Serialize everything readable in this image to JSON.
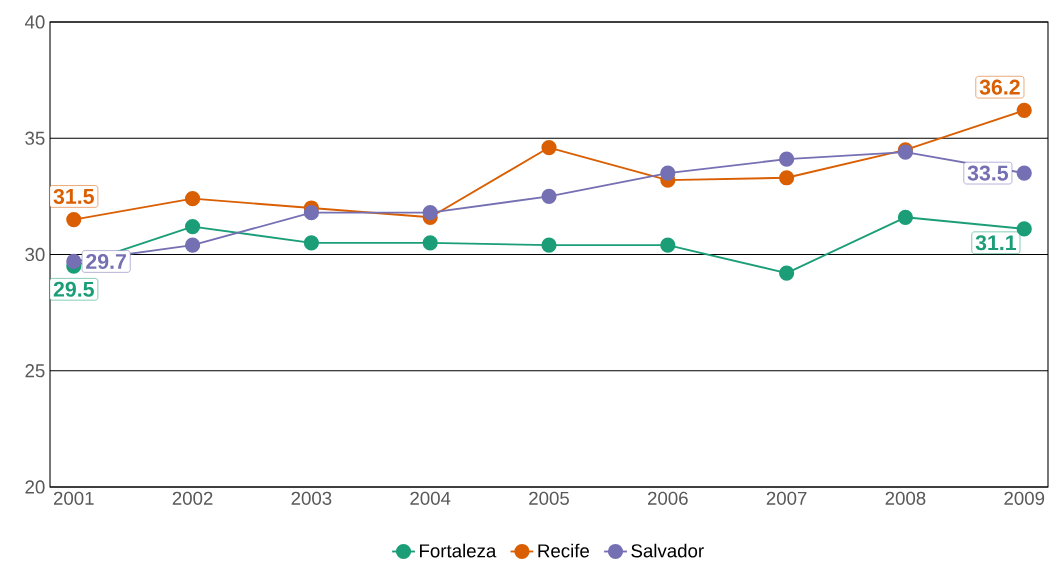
{
  "chart_data": {
    "type": "line",
    "x": [
      2001,
      2002,
      2003,
      2004,
      2005,
      2006,
      2007,
      2008,
      2009
    ],
    "series": [
      {
        "name": "Fortaleza",
        "color": "#1b9e77",
        "values": [
          29.5,
          31.2,
          30.5,
          30.5,
          30.4,
          30.4,
          29.2,
          31.6,
          31.1
        ],
        "value_labels": [
          "29.5",
          null,
          null,
          null,
          null,
          null,
          null,
          null,
          "31.1"
        ]
      },
      {
        "name": "Recife",
        "color": "#d95f02",
        "values": [
          31.5,
          32.4,
          32.0,
          31.6,
          34.6,
          33.2,
          33.3,
          34.5,
          36.2
        ],
        "value_labels": [
          "31.5",
          null,
          null,
          null,
          null,
          null,
          null,
          null,
          "36.2"
        ]
      },
      {
        "name": "Salvador",
        "color": "#7570b3",
        "values": [
          29.7,
          30.4,
          31.8,
          31.8,
          32.5,
          33.5,
          34.1,
          34.4,
          33.5
        ],
        "value_labels": [
          "29.7",
          null,
          null,
          null,
          null,
          null,
          null,
          null,
          "33.5"
        ]
      }
    ],
    "xlim": [
      2000.8,
      2009.2
    ],
    "xticks": [
      2001,
      2002,
      2003,
      2004,
      2005,
      2006,
      2007,
      2008,
      2009
    ],
    "ylim": [
      20,
      40
    ],
    "yticks": [
      20,
      25,
      30,
      35,
      40
    ],
    "grid": "y",
    "legend": "bottom",
    "marker": "circle",
    "line_style": "solid"
  }
}
